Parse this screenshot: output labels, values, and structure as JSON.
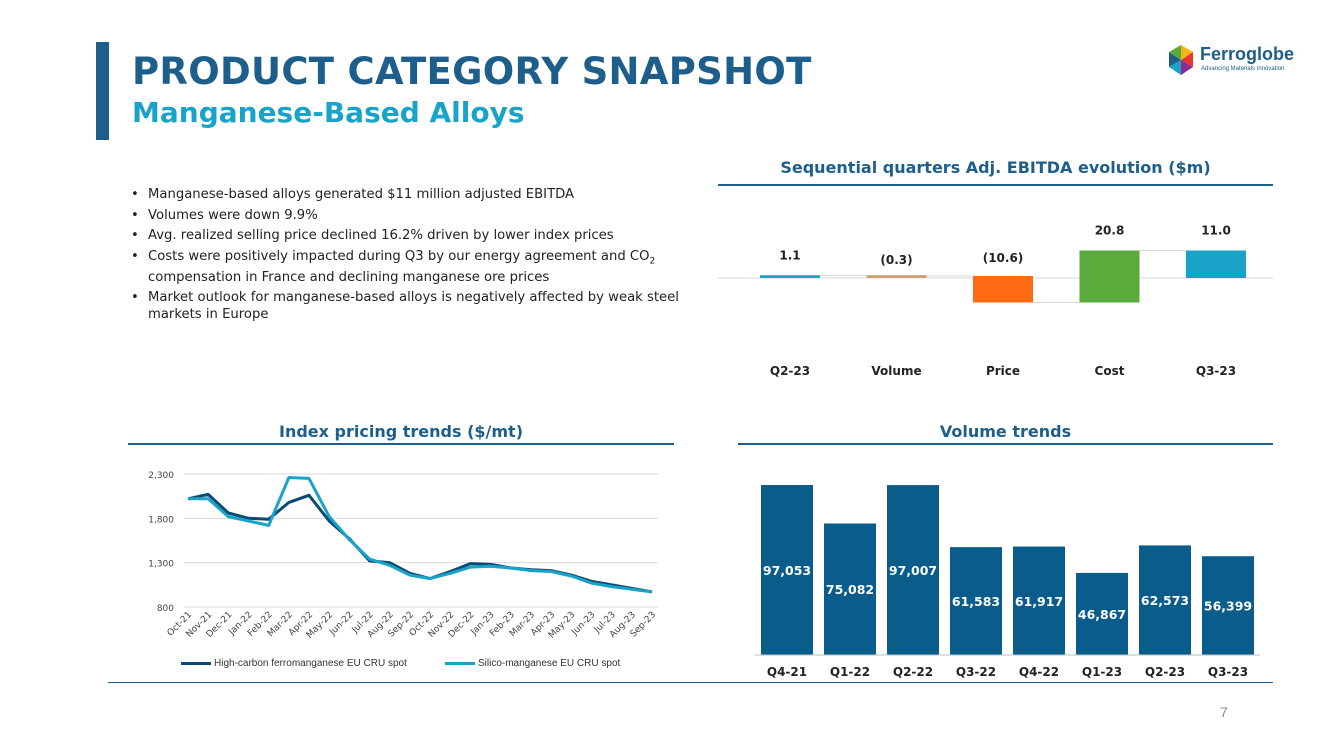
{
  "header": {
    "title": "PRODUCT CATEGORY SNAPSHOT",
    "subtitle": "Manganese-Based Alloys"
  },
  "logo": {
    "name": "Ferroglobe",
    "tagline": "Advancing Materials Innovation"
  },
  "bullets": [
    "Manganese-based alloys generated $11 million adjusted EBITDA",
    "Volumes were down 9.9%",
    "Avg. realized selling price declined 16.2% driven by lower index prices",
    "Costs were positively impacted during Q3 by our energy agreement and CO₂ compensation in France and declining manganese ore prices",
    "Market outlook for manganese-based alloys is negatively affected by weak steel markets in Europe"
  ],
  "page_number": "7",
  "colors": {
    "brand_dark": "#1d5f8a",
    "brand_light": "#1aa3c8",
    "orange": "#ff6a13",
    "green": "#5aab3b",
    "tan": "#c8976b",
    "navy_bar": "#0a5c8a"
  },
  "chart_data": [
    {
      "type": "waterfall",
      "title": "Sequential quarters Adj. EBITDA evolution ($m)",
      "categories": [
        "Q2-23",
        "Volume",
        "Price",
        "Cost",
        "Q3-23"
      ],
      "values": [
        1.1,
        -0.3,
        -10.6,
        20.8,
        11.0
      ],
      "labels": [
        "1.1",
        "(0.3)",
        "(10.6)",
        "20.8",
        "11.0"
      ],
      "kinds": [
        "total",
        "delta",
        "delta",
        "delta",
        "total"
      ]
    },
    {
      "type": "line",
      "title": "Index pricing trends ($/mt)",
      "x": [
        "Oct-21",
        "Nov-21",
        "Dec-21",
        "Jan-22",
        "Feb-22",
        "Mar-22",
        "Apr-22",
        "May-22",
        "Jun-22",
        "Jul-22",
        "Aug-22",
        "Sep-22",
        "Oct-22",
        "Nov-22",
        "Dec-22",
        "Jan-23",
        "Feb-23",
        "Mar-23",
        "Apr-23",
        "May-23",
        "Jun-23",
        "Jul-23",
        "Aug-23",
        "Sep-23"
      ],
      "ylim": [
        800,
        2300
      ],
      "yticks": [
        800,
        1300,
        1800,
        2300
      ],
      "ytick_labels": [
        "800",
        "1,300",
        "1,800",
        "2,300"
      ],
      "grid": true,
      "legend": "bottom",
      "series": [
        {
          "name": "High-carbon ferromanganese EU CRU spot",
          "values": [
            2020,
            2070,
            1860,
            1800,
            1790,
            1980,
            2060,
            1770,
            1570,
            1320,
            1300,
            1180,
            1120,
            1200,
            1290,
            1280,
            1240,
            1220,
            1210,
            1160,
            1090,
            1050,
            1010,
            970
          ]
        },
        {
          "name": "Silico-manganese EU CRU spot",
          "values": [
            2020,
            2020,
            1820,
            1770,
            1720,
            2260,
            2250,
            1820,
            1560,
            1340,
            1270,
            1160,
            1120,
            1180,
            1250,
            1260,
            1240,
            1210,
            1200,
            1150,
            1070,
            1030,
            1000,
            970
          ]
        }
      ]
    },
    {
      "type": "bar",
      "title": "Volume trends",
      "categories": [
        "Q4-21",
        "Q1-22",
        "Q2-22",
        "Q3-22",
        "Q4-22",
        "Q1-23",
        "Q2-23",
        "Q3-23"
      ],
      "values": [
        97053,
        75082,
        97007,
        61583,
        61917,
        46867,
        62573,
        56399
      ],
      "labels": [
        "97,053",
        "75,082",
        "97,007",
        "61,583",
        "61,917",
        "46,867",
        "62,573",
        "56,399"
      ]
    }
  ]
}
